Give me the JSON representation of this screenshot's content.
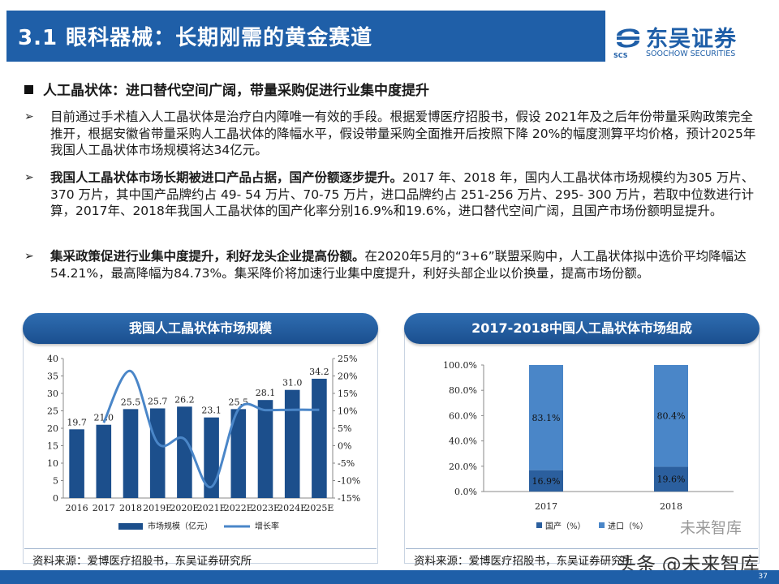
{
  "header": {
    "title": "3.1 眼科器械：长期刚需的黄金赛道",
    "logo_cn": "东吴证券",
    "logo_en": "SOOCHOW SECURITIES",
    "logo_abbr": "SCS",
    "brand_color": "#1f5fa8"
  },
  "section": {
    "heading": "人工晶状体：进口替代空间广阔，带量采购促进行业集中度提升"
  },
  "bullets": [
    {
      "bold": "",
      "text": "目前通过手术植入人工晶状体是治疗白内障唯一有效的手段。根据爱博医疗招股书，假设 2021年及之后年份带量采购政策完全推开，根据安徽省带量采购人工晶状体的降幅水平，假设带量采购全面推开后按照下降 20%的幅度测算平均价格，预计2025年我国人工晶状体市场规模将达34亿元。"
    },
    {
      "bold": "我国人工晶状体市场长期被进口产品占据，国产份额逐步提升。",
      "text": "2017 年、2018 年，国内人工晶状体市场规模约为305 万片、370 万片，其中国产品牌约占 49- 54 万片、70-75 万片，进口品牌约占 251-256 万片、295- 300 万片，若取中位数进行计算，2017年、2018年我国人工晶状体的国产化率分别16.9%和19.6%，进口替代空间广阔，且国产市场份额明显提升。"
    },
    {
      "bold": "集采政策促进行业集中度提升，利好龙头企业提高份额。",
      "text": "在2020年5月的“3+6”联盟采购中，人工晶状体拟中选价平均降幅达54.21%，最高降幅为84.73%。集采降价将加速行业集中度提升，利好头部企业以价换量，提高市场份额。"
    }
  ],
  "panel_left": {
    "title": "我国人工晶状体市场规模",
    "source": "资料来源：爱博医疗招股书，东吴证券研究所"
  },
  "panel_right": {
    "title": "2017-2018中国人工晶状体市场组成",
    "source": "资料来源：爱博医疗招股书，东吴证券研究所"
  },
  "watermark": {
    "text_main": "头条 @未来智库",
    "text_top": "未来智库"
  },
  "footer": {
    "page_number": "37"
  },
  "chart_data": [
    {
      "type": "bar",
      "categories": [
        "2016",
        "2017",
        "2018",
        "2019E",
        "2020E",
        "2021E",
        "2022E",
        "2023E",
        "2024E",
        "2025E"
      ],
      "series": [
        {
          "name": "市场规模（亿元）",
          "type": "bar",
          "axis": "left",
          "values": [
            19.7,
            21.0,
            25.5,
            25.7,
            26.2,
            23.1,
            25.5,
            28.1,
            31.0,
            34.2
          ],
          "color": "#1c4f8c"
        },
        {
          "name": "增长率",
          "type": "line",
          "axis": "right",
          "values": [
            null,
            6.6,
            21.4,
            0.8,
            1.9,
            -11.8,
            10.4,
            10.2,
            10.3,
            10.3
          ],
          "color": "#4a86c8"
        }
      ],
      "ylim": [
        0,
        40
      ],
      "yticks": [
        0,
        5,
        10,
        15,
        20,
        25,
        30,
        35,
        40
      ],
      "y2lim": [
        -15,
        25
      ],
      "y2ticks": [
        "-15%",
        "-10%",
        "-5%",
        "0%",
        "5%",
        "10%",
        "15%",
        "20%",
        "25%"
      ],
      "legend": "bottom",
      "grid": false
    },
    {
      "type": "bar",
      "stacked": true,
      "categories": [
        "2017",
        "2018"
      ],
      "series": [
        {
          "name": "国产（%）",
          "values": [
            16.9,
            19.6
          ],
          "labels": [
            "16.9%",
            "19.6%"
          ],
          "color": "#2b5f9e"
        },
        {
          "name": "进口（%）",
          "values": [
            83.1,
            80.4
          ],
          "labels": [
            "83.1%",
            "80.4%"
          ],
          "color": "#4a86c8"
        }
      ],
      "ylim": [
        0,
        100
      ],
      "yticks": [
        "0.0%",
        "20.0%",
        "40.0%",
        "60.0%",
        "80.0%",
        "100.0%"
      ],
      "legend": "bottom",
      "grid": false
    }
  ]
}
